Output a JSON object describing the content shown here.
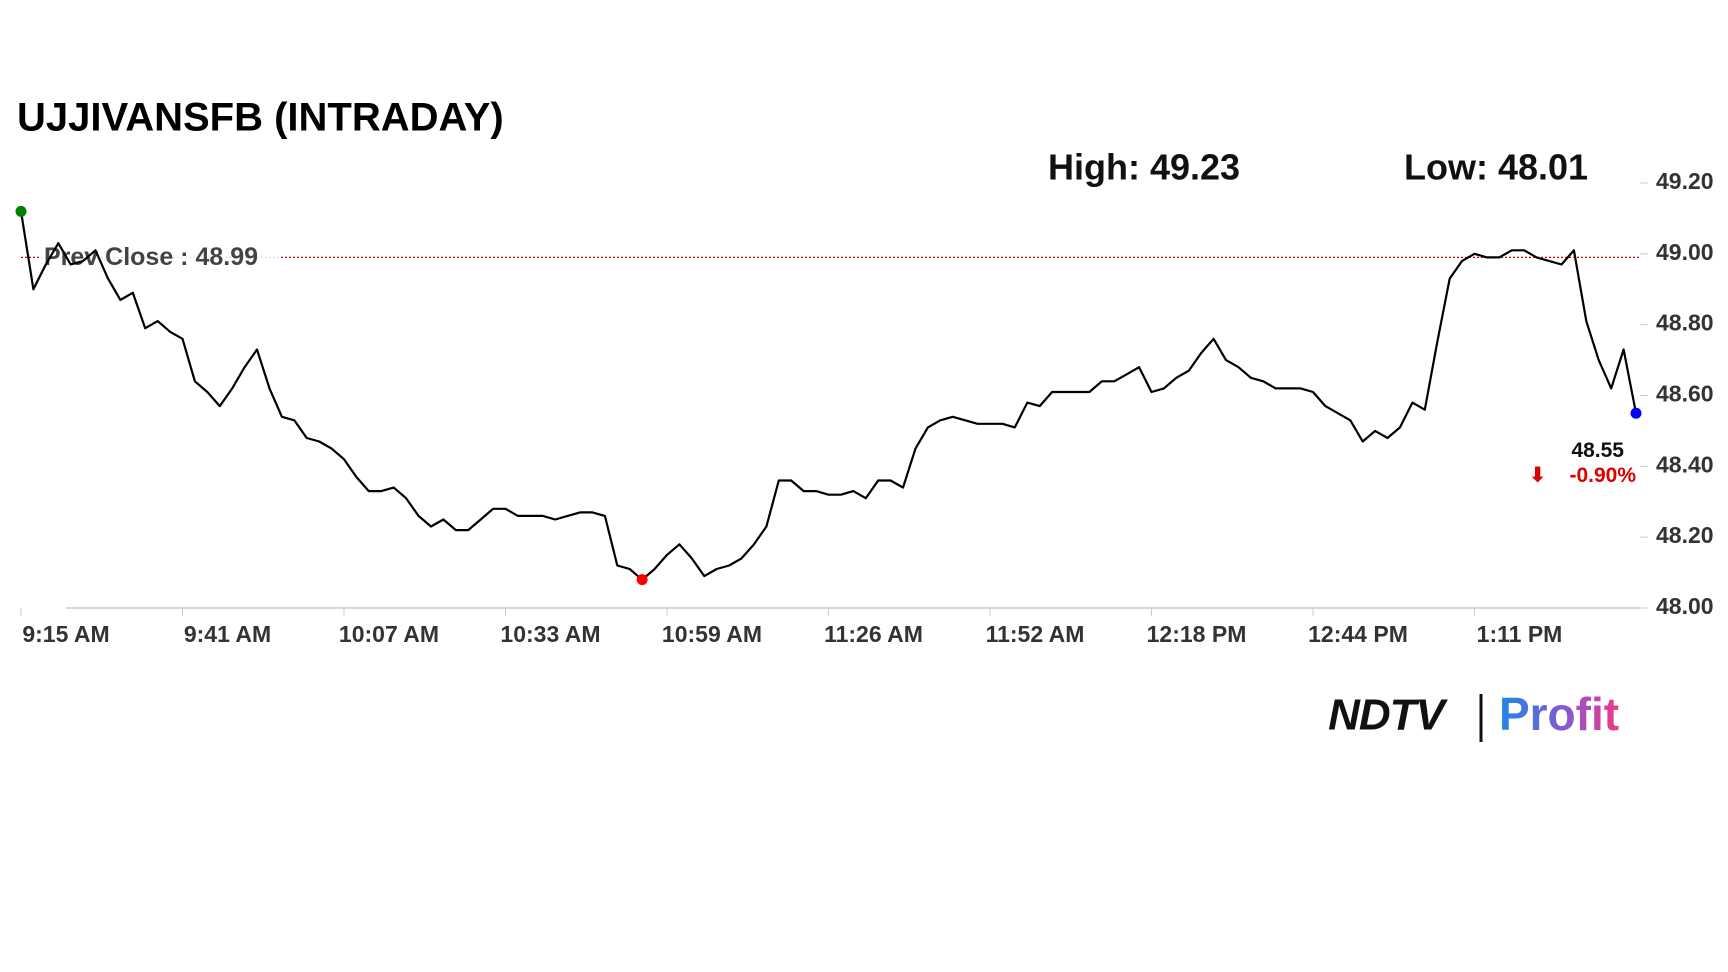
{
  "chart_data": {
    "type": "line",
    "title": "UJJIVANSFB (INTRADAY)",
    "high": {
      "value": 49.23,
      "label": "High: 49.23"
    },
    "low": {
      "value": 48.01,
      "label": "Low: 48.01"
    },
    "prev_close": {
      "value": 48.99,
      "label": "Prev Close : 48.99"
    },
    "change": {
      "value": -0.9,
      "label": "-0.90%"
    },
    "color": "#000000",
    "start_color": "#008000",
    "low_color": "#ff0000",
    "end_color": "#0000ff",
    "prev_close_color": "#cc0000",
    "change_color": "#dd0000",
    "categories": [
      "9:15 AM",
      null,
      null,
      null,
      null,
      null,
      null,
      null,
      null,
      null,
      null,
      null,
      null,
      "9:41 AM",
      null,
      null,
      null,
      null,
      null,
      null,
      null,
      null,
      null,
      null,
      null,
      null,
      "10:07 AM",
      null,
      null,
      null,
      null,
      null,
      null,
      null,
      null,
      null,
      null,
      null,
      null,
      "10:33 AM",
      null,
      null,
      null,
      null,
      null,
      null,
      null,
      null,
      null,
      null,
      null,
      null,
      "10:59 AM",
      null,
      null,
      null,
      null,
      null,
      null,
      null,
      null,
      null,
      null,
      null,
      null,
      "11:26 AM",
      null,
      null,
      null,
      null,
      null,
      null,
      null,
      null,
      null,
      null,
      null,
      null,
      "11:52 AM",
      null,
      null,
      null,
      null,
      null,
      null,
      null,
      null,
      null,
      null,
      null,
      null,
      "12:18 PM",
      null,
      null,
      null,
      null,
      null,
      null,
      null,
      null,
      null,
      null,
      null,
      null,
      "12:44 PM",
      null,
      null,
      null,
      null,
      null,
      null,
      null,
      null,
      null,
      null,
      null,
      null,
      "1:11 PM",
      null,
      null,
      null,
      null,
      null,
      null,
      null,
      null,
      null,
      null,
      null,
      null,
      null
    ],
    "values": [
      49.12,
      48.9,
      48.97,
      49.03,
      48.97,
      48.98,
      49.01,
      48.93,
      48.87,
      48.89,
      48.79,
      48.81,
      48.78,
      48.76,
      48.64,
      48.61,
      48.57,
      48.62,
      48.68,
      48.73,
      48.62,
      48.54,
      48.53,
      48.48,
      48.47,
      48.45,
      48.42,
      48.37,
      48.33,
      48.33,
      48.34,
      48.31,
      48.26,
      48.23,
      48.25,
      48.22,
      48.22,
      48.25,
      48.28,
      48.28,
      48.26,
      48.26,
      48.26,
      48.25,
      48.26,
      48.27,
      48.27,
      48.26,
      48.12,
      48.11,
      48.08,
      48.11,
      48.15,
      48.18,
      48.14,
      48.09,
      48.11,
      48.12,
      48.14,
      48.18,
      48.23,
      48.36,
      48.36,
      48.33,
      48.33,
      48.32,
      48.32,
      48.33,
      48.31,
      48.36,
      48.36,
      48.34,
      48.45,
      48.51,
      48.53,
      48.54,
      48.53,
      48.52,
      48.52,
      48.52,
      48.51,
      48.58,
      48.57,
      48.61,
      48.61,
      48.61,
      48.61,
      48.64,
      48.64,
      48.66,
      48.68,
      48.61,
      48.62,
      48.65,
      48.67,
      48.72,
      48.76,
      48.7,
      48.68,
      48.65,
      48.64,
      48.62,
      48.62,
      48.62,
      48.61,
      48.57,
      48.55,
      48.53,
      48.47,
      48.5,
      48.48,
      48.51,
      48.58,
      48.56,
      48.75,
      48.93,
      48.98,
      49.0,
      48.99,
      48.99,
      49.01,
      49.01,
      48.99,
      48.98,
      48.97,
      49.01,
      48.81,
      48.7,
      48.62,
      48.73,
      48.55
    ],
    "ylim": [
      48.0,
      49.2
    ],
    "yticks": [
      {
        "value": 48.0,
        "label": "48.00"
      },
      {
        "value": 48.2,
        "label": "48.20"
      },
      {
        "value": 48.4,
        "label": "48.40"
      },
      {
        "value": 48.6,
        "label": "48.60"
      },
      {
        "value": 48.8,
        "label": "48.80"
      },
      {
        "value": 49.0,
        "label": "49.00"
      },
      {
        "value": 49.2,
        "label": "49.20"
      }
    ],
    "logo": {
      "left": "NDTV",
      "right": "Profit"
    }
  }
}
